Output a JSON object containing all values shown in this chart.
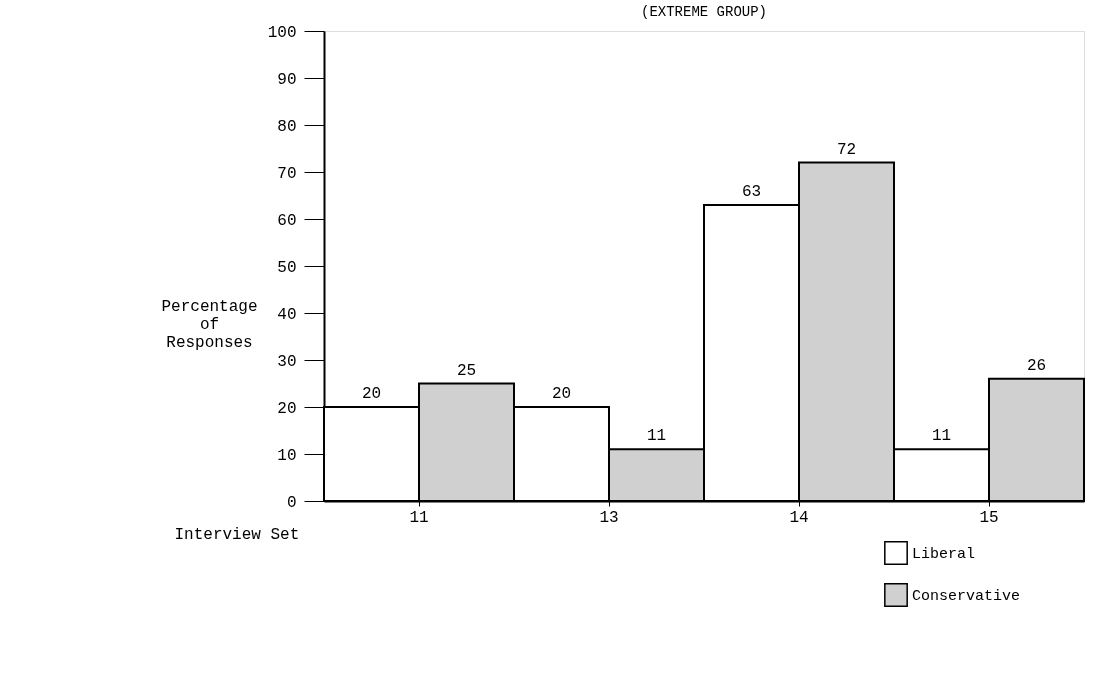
{
  "chart_data": {
    "type": "bar",
    "title": "(EXTREME GROUP)",
    "xlabel": "Interview Set",
    "ylabel": "Percentage of Responses",
    "categories": [
      "11",
      "13",
      "14",
      "15"
    ],
    "series": [
      {
        "name": "Liberal",
        "color": "#ffffff",
        "values": [
          20,
          20,
          63,
          11
        ]
      },
      {
        "name": "Conservative",
        "color": "#d0d0d0",
        "values": [
          25,
          11,
          72,
          26
        ]
      }
    ],
    "ylim": [
      0,
      100
    ],
    "yticks": [
      0,
      10,
      20,
      30,
      40,
      50,
      60,
      70,
      80,
      90,
      100
    ],
    "grid": false,
    "legend": "bottom right",
    "data_labels": true
  }
}
